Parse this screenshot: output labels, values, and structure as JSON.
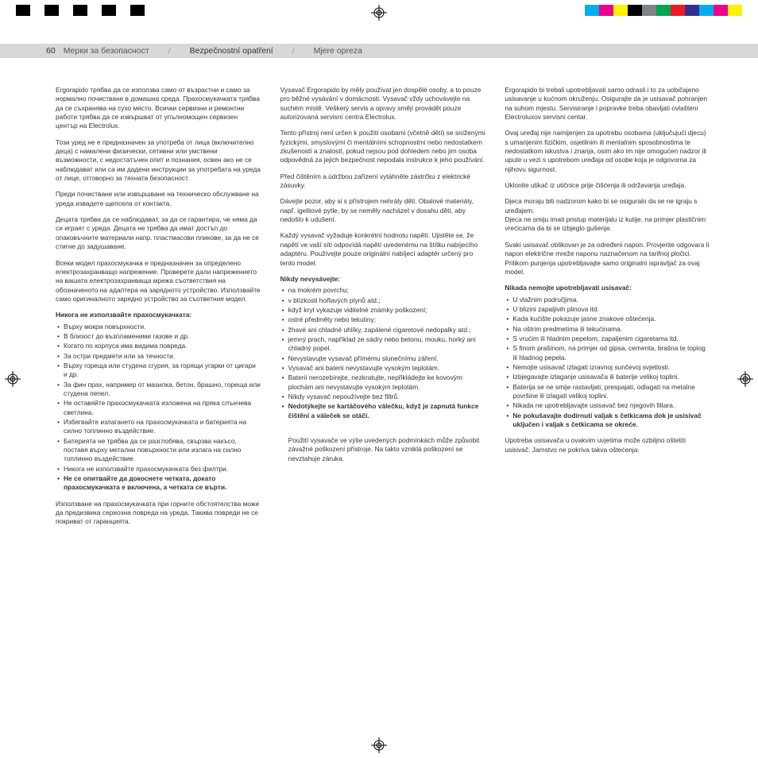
{
  "colorBar": {
    "left": [
      "#000000",
      "#ffffff",
      "#000000",
      "#ffffff",
      "#000000",
      "#ffffff",
      "#000000",
      "#ffffff",
      "#000000"
    ],
    "right": [
      "#00aeef",
      "#ec008c",
      "#fff200",
      "#000000",
      "#808285",
      "#00a651",
      "#ed1c24",
      "#2e3192",
      "#00aeef",
      "#ec008c",
      "#fff200"
    ]
  },
  "header": {
    "pageNum": "60",
    "sec1": "Мерки за безопасност",
    "sec2": "Bezpečnostní opatření",
    "sec3": "Mjere opreza",
    "sep": "/"
  },
  "col1": {
    "p1": "Ergorapido трябва да се използва само от възрастни и само за нормално почистване в домашна среда. Прахосмукачката трябва да се съхранява на сухо място. Всички сервизни и ремонтни работи трябва да се извършват от упълномощен сервизен център на Electrolux.",
    "p2": "Този уред не е предназначен за употреба от лица (включително деца) с намалени физически, сетивни или умствени възможности, с недостатъчен опит и познания, освен ако не се наблюдават или са им дадени инструкции за употребата на уреда от лице, отговорно за тяхната безопасност.",
    "p3": "Преди почистване или извършване на техническо обслужване на уреда извадете щепсела от контакта.",
    "p4": "Децата трябва да се наблюдават, за да се гарантира, че няма да си играят с уреда. Децата не трябва да имат достъп до опаковъчните материали напр. пластмасови пликове, за да не се стигне до задушаване.",
    "p5": "Всеки модел прахосмукачка е предназначен за определено електрозахранващо напрежение. Проверете дали напрежението на вашата електрозахранваща мрежа съответствия на обозначеното на адаптера на зарядното устройство. Използвайте само оригиналното зарядно устройство за съответния модел.",
    "head": "Никога не използвайте прахосмукачката:",
    "items": [
      "Върху мокри повърхности.",
      "В близост до възпламеними газове и др.",
      "Когато по корпуса има видима повреда.",
      "За остри предмети или за течности.",
      "Върху гореща или студена сгурия, за горящи угарки от цигари и др.",
      "За фин прах, например от мазилка, бетон, брашно, гореща или студена пепел.",
      "Не оставяйте прахосмукачката изложена на пряка слънчева светлина.",
      "Избягвайте излагането на прахосмукачката и батерията на силно топлинно въздействие.",
      "Батерията не трябва да се разглобява, свързва накъсо, поставя върху метални повърхности или излага на силно топлинно въздействие.",
      "Никога не използвайте прахосмукачката без филтри."
    ],
    "itemBold": "Не се опитвайте да докоснете четката, докато прахосмукачката е включена, а четката се върти.",
    "p6": "Използване на прахосмукачката при горните обстоятелства може да предизвика сериозна повреда на уреда. Такива повреди не се покриват от гаранцията."
  },
  "col2": {
    "p1": "Vysavač Ergorapido by měly používat jen dospělé osoby, a to pouze pro běžné vysávání v domácnosti. Vysavač vždy uchovávejte na suchém místě. Veškerý servis a opravy smějí provádět pouze autorizovaná servisní centra Electrolux.",
    "p2": "Tento přístroj není určen k použití osobami (včetně dětí) se sníženými fyzickými, smyslovými či mentálními schopnostmi nebo nedostatkem zkušeností a znalostí, pokud nejsou pod dohledem nebo jim osoba odpovědná za jejich bezpečnost nepodala instrukce k jeho používání.",
    "p3": "Před čištěním a údržbou zařízení vytáhněte zástrčku z elektrické zásuvky.",
    "p4": "Dávejte pozor, aby si s přístrojem nehrály děti. Obalové materiály, např. igelitové pytle, by se neměly nacházet v dosahu dětí, aby nedošlo k udušení.",
    "p5": "Každý vysavač vyžaduje konkrétní hodnotu napětí. Ujistěte se, že napětí ve vaší síti odpovídá napětí uvedenému na štítku nabíjecího adaptéru. Používejte pouze originální nabíjecí adaptér určený pro tento model.",
    "head": "Nikdy nevysávejte:",
    "items": [
      "na mokrém povrchu;",
      "v blízkosti hořlavých plynů atd.;",
      "když kryt vykazuje viditelné známky poškození;",
      "ostré předměty nebo tekutiny;",
      "žhavé ani chladné uhlíky, zapálené cigaretové nedopalky atd.;",
      "jemný prach, například ze sádry nebo betonu, mouku, horký ani chladný popel.",
      "Nevystavujte vysavač přímému slunečnímu záření.",
      "Vysavač ani baterii nevystavujte vysokým teplotám.",
      "Baterii nerozebírejte, nezkratujte, nepřikládejte ke kovovým plochám ani nevystavujte vysokým teplotám.",
      "Nikdy vysavač nepoužívejte bez filtrů."
    ],
    "itemBold": "Nedotýkejte se kartáčového válečku, když je zapnutá funkce čištění a váleček se otáčí.",
    "p6": "Použití vysavače ve výše uvedených podmínkách může způsobit závažné poškození přístroje. Na takto vzniklá poškození se nevztahuje záruka."
  },
  "col3": {
    "p1": "Ergorapido bi trebali upotrebljavati samo odrasli i to za uobičajeno usisavanje u kućnom okruženju. Osigurajte da je usisavač pohranjen na suhom mjestu. Servisiranje i popravke treba obavljati ovlašteni Electroluxov servisni centar.",
    "p2": "Ovaj uređaj nije namijenjen za upotrebu osobama (uključujući djecu) s umanjenim fizičkim, osjetilnim ili mentalnim sposobnostima te nedostatkom iskustva i znanja, osim ako im nije omogućen nadzor ili upute u vezi s upotrebom uređaja od osobe koja je odgovorna za njihovu sigurnost.",
    "p3": "Uklonite utikač iz utičnice prije čišćenja ili održavanja uređaja.",
    "p4": "Djeca moraju biti nadzorom kako bi se osiguralo da se ne igraju s uređajem.\nDjeca ne smiju imati pristup materijalu iz kutije, na primjer plastičnim vrećicama da bi se izbjeglo gušenje.",
    "p5": "Svaki usisavač oblikovan je za određeni napon. Provjerite odgovara li napon električne mreže naponu naznačenom na tarifnoj pločici. Prilikom punjenja upotrebljavajte samo originalni ispravljač za ovaj model.",
    "head": "Nikada nemojte upotrebljavati usisavač:",
    "items": [
      "U vlažnim područjima.",
      "U blizini zapaljivih plinova itd.",
      "Kada kućište pokazuje jasne znakove oštećenja.",
      "Na oštrim predmetima ili tekućinama.",
      "S vrućim ili hladnim pepelom, zapaljenim cigaretama itd.",
      "S finom prašinom, na primjer od gipsa, cementa, brašna te toplog ili hladnog pepela.",
      "Nemojte usisavač izlagati izravnoj sunčevoj svjetlosti.",
      "Izbjegavajte izlaganje usisavača ili baterije velikoj toplini.",
      "Baterija se ne smije rastavljati, prespajati, odlagati na metalne površine ili izlagati velikoj toplini.",
      "Nikada ne upotrebljavajte usisavač bez njegovih filtara."
    ],
    "itemBold": "Ne pokušavajte dodirnuti valjak s četkicama dok je usisivač uključen i valjak s četkicama se okreće.",
    "p6": "Upotreba usisavača u ovakvim uvjetima može ozbiljno oštetiti usisivač. Jamstvo ne pokriva takva oštećenja."
  }
}
